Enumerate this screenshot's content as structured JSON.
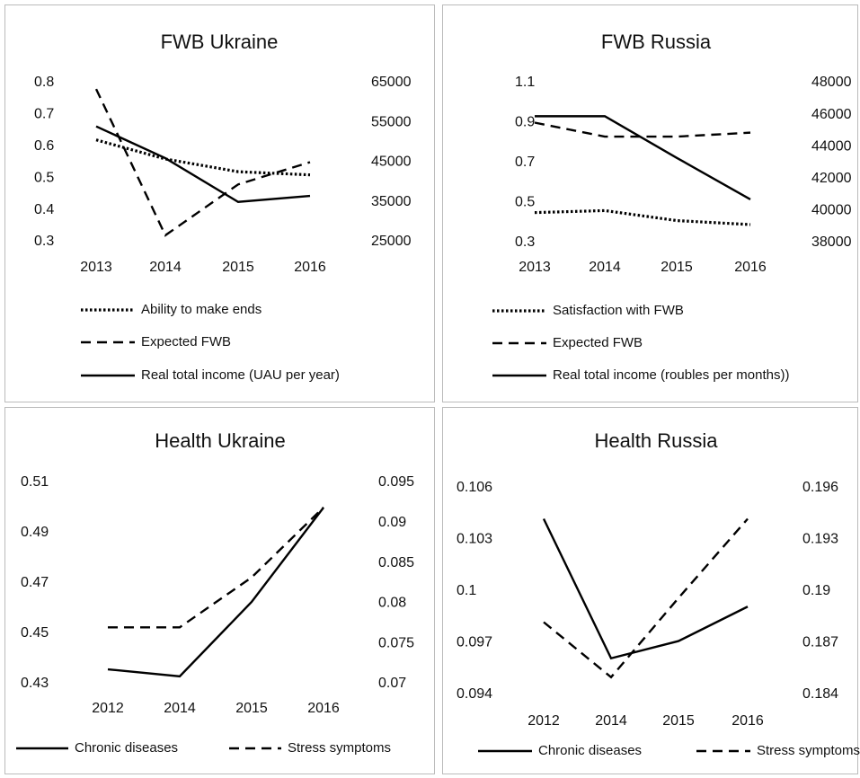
{
  "chart_data": [
    {
      "type": "line",
      "title": "FWB Ukraine",
      "categories": [
        "2013",
        "2014",
        "2015",
        "2016"
      ],
      "ylim": [
        0.3,
        0.8
      ],
      "yticks": [
        0.3,
        0.4,
        0.5,
        0.6,
        0.7,
        0.8
      ],
      "y2lim": [
        25000,
        65000
      ],
      "y2ticks": [
        25000,
        35000,
        45000,
        55000,
        65000
      ],
      "legend": "bottom-stacked",
      "series": [
        {
          "name": "Ability to make ends",
          "color": "#000000",
          "style": "dotted",
          "values": [
            0.62,
            0.56,
            0.52,
            0.51
          ]
        },
        {
          "name": "Expected FWB",
          "color": "#000000",
          "style": "dashed",
          "values": [
            0.78,
            0.32,
            0.48,
            0.55
          ]
        },
        {
          "name": "Real total income (UAU per year)",
          "color": "#000000",
          "style": "solid",
          "axis": "y2",
          "values": [
            54000,
            46000,
            35000,
            36500
          ]
        }
      ]
    },
    {
      "type": "line",
      "title": "FWB Russia",
      "categories": [
        "2013",
        "2014",
        "2015",
        "2016"
      ],
      "ylim": [
        0.3,
        1.1
      ],
      "yticks": [
        0.3,
        0.5,
        0.7,
        0.9,
        1.1
      ],
      "y2lim": [
        38000,
        48000
      ],
      "y2ticks": [
        38000,
        40000,
        42000,
        44000,
        46000,
        48000
      ],
      "legend": "bottom-stacked",
      "series": [
        {
          "name": "Satisfaction with FWB",
          "color": "#000000",
          "style": "dotted",
          "values": [
            0.45,
            0.46,
            0.41,
            0.39
          ]
        },
        {
          "name": "Expected FWB",
          "color": "#000000",
          "style": "dashed",
          "values": [
            0.9,
            0.83,
            0.83,
            0.85
          ]
        },
        {
          "name": "Real total income (roubles per months))",
          "color": "#000000",
          "style": "solid",
          "axis": "y2",
          "values": [
            45900,
            45900,
            43300,
            40700
          ]
        }
      ]
    },
    {
      "type": "line",
      "title": "Health Ukraine",
      "categories": [
        "2012",
        "2014",
        "2015",
        "2016"
      ],
      "ylim": [
        0.43,
        0.51
      ],
      "yticks": [
        0.43,
        0.45,
        0.47,
        0.49,
        0.51
      ],
      "y2lim": [
        0.07,
        0.095
      ],
      "y2ticks": [
        0.07,
        0.075,
        0.08,
        0.085,
        0.09,
        0.095
      ],
      "legend": "bottom-row",
      "series": [
        {
          "name": "Chronic diseases",
          "color": "#000000",
          "style": "solid",
          "values": [
            0.4357,
            0.4329,
            0.4625,
            0.5
          ]
        },
        {
          "name": "Stress symptoms",
          "color": "#000000",
          "style": "dashed",
          "axis": "y2",
          "values": [
            0.077,
            0.077,
            0.0832,
            0.0919
          ]
        }
      ]
    },
    {
      "type": "line",
      "title": "Health Russia",
      "categories": [
        "2012",
        "2014",
        "2015",
        "2016"
      ],
      "ylim": [
        0.094,
        0.106
      ],
      "yticks": [
        0.094,
        0.097,
        0.1,
        0.103,
        0.106
      ],
      "y2lim": [
        0.184,
        0.196
      ],
      "y2ticks": [
        0.184,
        0.187,
        0.19,
        0.193,
        0.196
      ],
      "legend": "bottom-row",
      "series": [
        {
          "name": "Chronic diseases",
          "color": "#000000",
          "style": "solid",
          "values": [
            0.1042,
            0.0961,
            0.0971,
            0.0991
          ]
        },
        {
          "name": "Stress symptoms",
          "color": "#000000",
          "style": "dashed",
          "axis": "y2",
          "values": [
            0.1882,
            0.185,
            0.1896,
            0.1942
          ]
        }
      ]
    }
  ]
}
